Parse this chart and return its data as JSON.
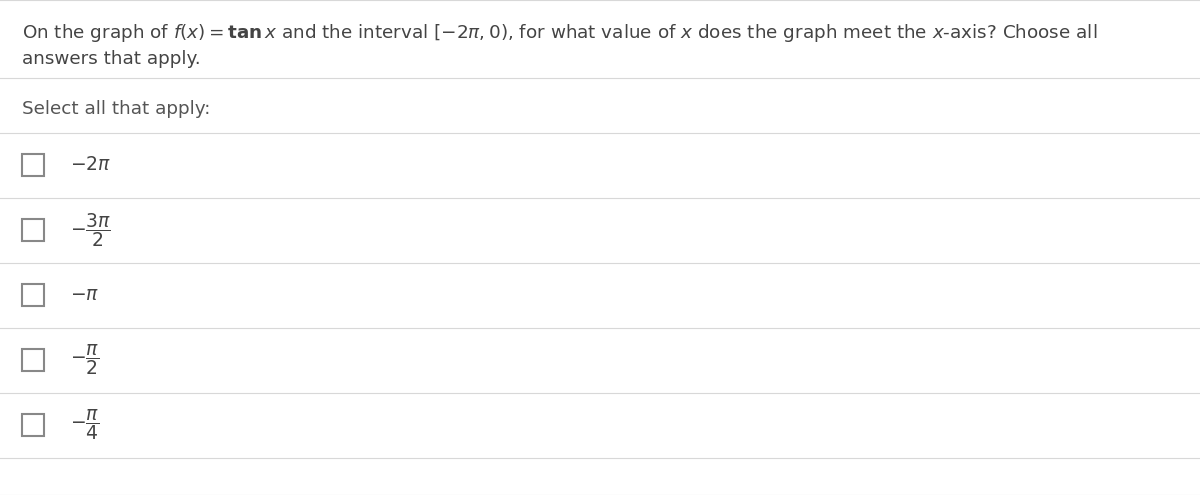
{
  "bg_color": "#ffffff",
  "border_color": "#d8d8d8",
  "text_color": "#444444",
  "select_color": "#555555",
  "math_color": "#c0392b",
  "figsize": [
    12.0,
    4.95
  ],
  "dpi": 100,
  "question_line1": "On the graph of $f(x) = \\mathbf{tan}\\, x$ and the interval $[-2\\pi, 0)$, for what value of $x$ does the graph meet the $x$-axis? Choose all",
  "question_line2": "answers that apply.",
  "select_label": "Select all that apply:",
  "choices_math": [
    "$-2\\pi$",
    "$-\\dfrac{3\\pi}{2}$",
    "$-\\pi$",
    "$-\\dfrac{\\pi}{2}$",
    "$-\\dfrac{\\pi}{4}$"
  ]
}
